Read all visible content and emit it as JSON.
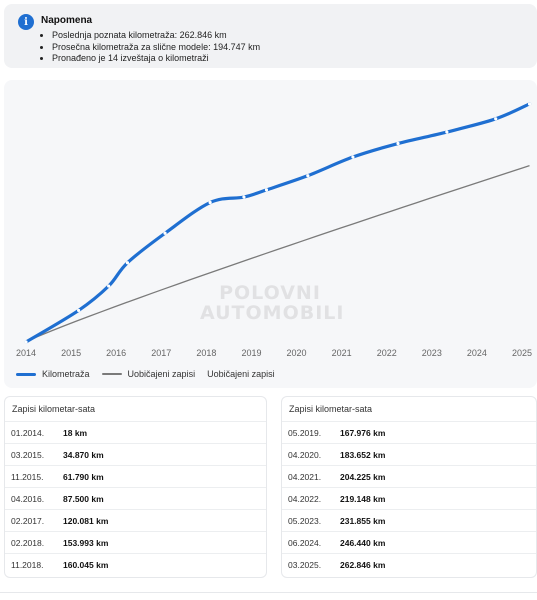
{
  "note": {
    "icon": "info-icon",
    "title": "Napomena",
    "items": [
      "Poslednja poznata kilometraža: 262.846 km",
      "Prosečna kilometraža za slične modele: 194.747 km",
      "Pronađeno je 14 izveštaja o kilometraži"
    ]
  },
  "chart_data": {
    "type": "line",
    "x_ticks": [
      "2014",
      "2015",
      "2016",
      "2017",
      "2018",
      "2019",
      "2020",
      "2021",
      "2022",
      "2023",
      "2024",
      "2025"
    ],
    "series": [
      {
        "name": "Kilometraža",
        "color": "#1f6fd1",
        "x": [
          "01.2014.",
          "03.2015.",
          "11.2015.",
          "04.2016.",
          "02.2017.",
          "02.2018.",
          "11.2018.",
          "05.2019.",
          "04.2020.",
          "04.2021.",
          "04.2022.",
          "05.2023.",
          "06.2024.",
          "03.2025."
        ],
        "values": [
          18,
          34870,
          61790,
          87500,
          120081,
          153993,
          160045,
          167976,
          183652,
          204225,
          219148,
          231855,
          246440,
          262846
        ]
      },
      {
        "name": "Uobičajeni zapisi",
        "color": "#7a7a7a",
        "x": [
          "01.2014.",
          "03.2025."
        ],
        "values": [
          0,
          194747
        ]
      }
    ],
    "legend": [
      "Kilometraža",
      "Uobičajeni zapisi",
      "Uobičajeni zapisi"
    ],
    "legend_position": "bottom-left",
    "grid": false
  },
  "watermark": [
    "POLOVNI",
    "AUTOMOBILI"
  ],
  "tables": [
    {
      "title": "Zapisi kilometar-sata",
      "rows": [
        {
          "date": "01.2014.",
          "km": "18 km"
        },
        {
          "date": "03.2015.",
          "km": "34.870 km"
        },
        {
          "date": "11.2015.",
          "km": "61.790 km"
        },
        {
          "date": "04.2016.",
          "km": "87.500 km"
        },
        {
          "date": "02.2017.",
          "km": "120.081 km"
        },
        {
          "date": "02.2018.",
          "km": "153.993 km"
        },
        {
          "date": "11.2018.",
          "km": "160.045 km"
        }
      ]
    },
    {
      "title": "Zapisi kilometar-sata",
      "rows": [
        {
          "date": "05.2019.",
          "km": "167.976 km"
        },
        {
          "date": "04.2020.",
          "km": "183.652 km"
        },
        {
          "date": "04.2021.",
          "km": "204.225 km"
        },
        {
          "date": "04.2022.",
          "km": "219.148 km"
        },
        {
          "date": "05.2023.",
          "km": "231.855 km"
        },
        {
          "date": "06.2024.",
          "km": "246.440 km"
        },
        {
          "date": "03.2025.",
          "km": "262.846 km"
        }
      ]
    }
  ]
}
